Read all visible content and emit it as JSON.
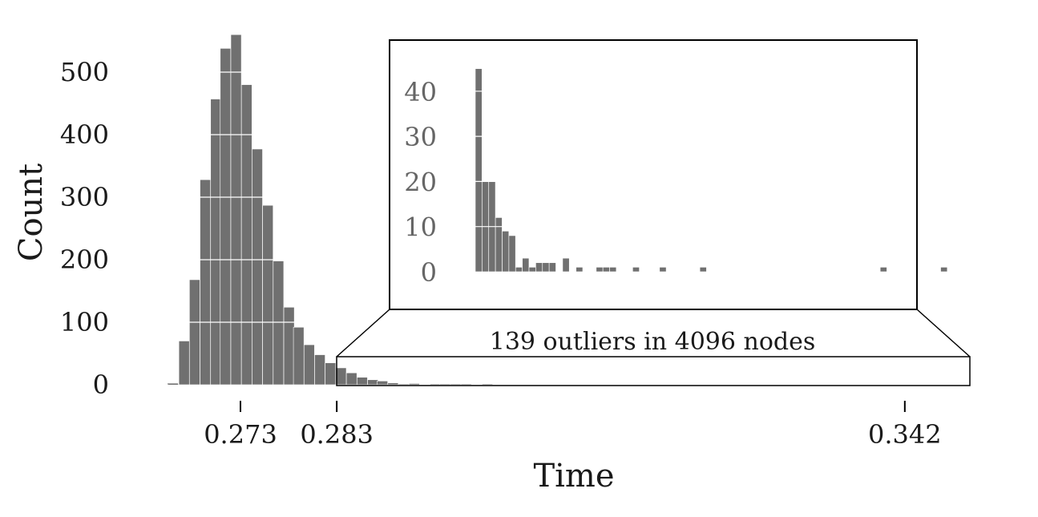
{
  "chart_data": [
    {
      "type": "bar",
      "title": "",
      "xlabel": "Time",
      "ylabel": "Count",
      "ylim": [
        0,
        560
      ],
      "y_ticks": [
        "0",
        "100",
        "200",
        "300",
        "400",
        "500"
      ],
      "x_tick_labels": [
        {
          "value": 0.273,
          "label": "0.273"
        },
        {
          "value": 0.283,
          "label": "0.283"
        },
        {
          "value": 0.342,
          "label": "0.342"
        }
      ],
      "bar_color": "#707070",
      "gridlines": "white horizontal lines through bars",
      "bins": [
        {
          "x": 0.2655,
          "y": 1
        },
        {
          "x": 0.2666,
          "y": 70
        },
        {
          "x": 0.2677,
          "y": 168
        },
        {
          "x": 0.2688,
          "y": 328
        },
        {
          "x": 0.2699,
          "y": 457
        },
        {
          "x": 0.2709,
          "y": 538
        },
        {
          "x": 0.272,
          "y": 560
        },
        {
          "x": 0.2731,
          "y": 480
        },
        {
          "x": 0.2742,
          "y": 377
        },
        {
          "x": 0.2753,
          "y": 287
        },
        {
          "x": 0.2764,
          "y": 198
        },
        {
          "x": 0.2775,
          "y": 124
        },
        {
          "x": 0.2785,
          "y": 92
        },
        {
          "x": 0.2796,
          "y": 64
        },
        {
          "x": 0.2807,
          "y": 48
        },
        {
          "x": 0.2818,
          "y": 35
        },
        {
          "x": 0.2829,
          "y": 27
        },
        {
          "x": 0.284,
          "y": 19
        },
        {
          "x": 0.2851,
          "y": 12
        },
        {
          "x": 0.2862,
          "y": 8
        },
        {
          "x": 0.2872,
          "y": 6
        },
        {
          "x": 0.2883,
          "y": 3
        },
        {
          "x": 0.2894,
          "y": 1
        },
        {
          "x": 0.2905,
          "y": 2
        },
        {
          "x": 0.2927,
          "y": 1
        },
        {
          "x": 0.2937,
          "y": 1
        },
        {
          "x": 0.2948,
          "y": 1
        },
        {
          "x": 0.2959,
          "y": 1
        },
        {
          "x": 0.2981,
          "y": 1
        }
      ]
    },
    {
      "type": "bar",
      "title": "",
      "xlabel": "",
      "ylabel": "",
      "ylim": [
        0,
        45
      ],
      "y_ticks": [
        "0",
        "10",
        "20",
        "30",
        "40"
      ],
      "xlim": [
        0.283,
        0.342
      ],
      "bar_color": "#707070",
      "bins": [
        {
          "x": 0.2834,
          "y": 45
        },
        {
          "x": 0.2841,
          "y": 20
        },
        {
          "x": 0.2848,
          "y": 20
        },
        {
          "x": 0.2855,
          "y": 12
        },
        {
          "x": 0.2862,
          "y": 9
        },
        {
          "x": 0.2869,
          "y": 8
        },
        {
          "x": 0.2876,
          "y": 1
        },
        {
          "x": 0.2883,
          "y": 3
        },
        {
          "x": 0.289,
          "y": 1
        },
        {
          "x": 0.2897,
          "y": 2
        },
        {
          "x": 0.2904,
          "y": 2
        },
        {
          "x": 0.2911,
          "y": 2
        },
        {
          "x": 0.2925,
          "y": 3
        },
        {
          "x": 0.2939,
          "y": 1
        },
        {
          "x": 0.296,
          "y": 1
        },
        {
          "x": 0.2967,
          "y": 1
        },
        {
          "x": 0.2974,
          "y": 1
        },
        {
          "x": 0.2998,
          "y": 1
        },
        {
          "x": 0.3026,
          "y": 1
        },
        {
          "x": 0.3068,
          "y": 1
        },
        {
          "x": 0.3256,
          "y": 1
        },
        {
          "x": 0.3319,
          "y": 1
        }
      ],
      "annotation": "139 outliers in 4096 nodes"
    }
  ]
}
